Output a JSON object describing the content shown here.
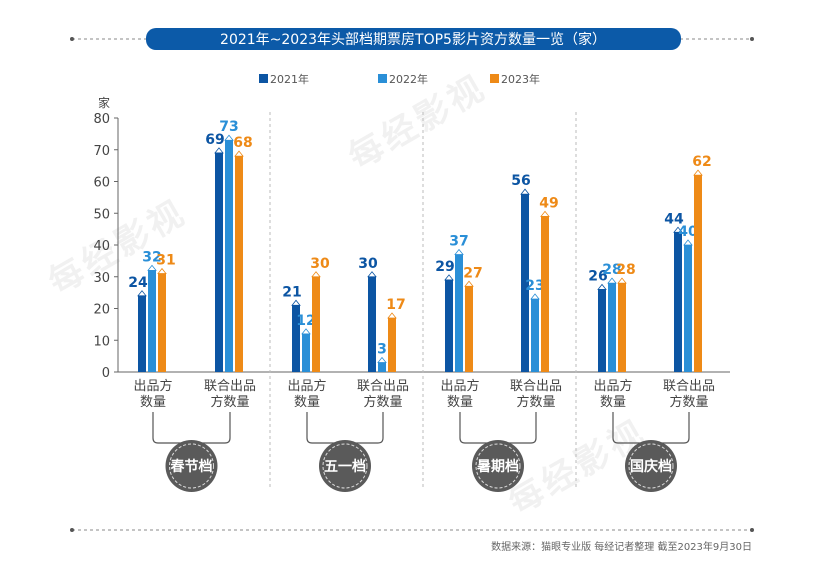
{
  "chart_data": {
    "type": "bar",
    "title": "2021年~2023年头部档期票房TOP5影片资方数量一览（家）",
    "ylabel": "家",
    "ylim": [
      0,
      80
    ],
    "yticks": [
      0,
      10,
      20,
      30,
      40,
      50,
      60,
      70,
      80
    ],
    "legend_position": "top-center",
    "legend": [
      "2021年",
      "2022年",
      "2023年"
    ],
    "colors": {
      "2021年": "#0c55a3",
      "2022年": "#2a8fd7",
      "2023年": "#ee8a17"
    },
    "groups": [
      {
        "name": "春节档",
        "categories": [
          {
            "label": [
              "出品方",
              "数量"
            ],
            "values": [
              24,
              32,
              31
            ]
          },
          {
            "label": [
              "联合出品",
              "方数量"
            ],
            "values": [
              69,
              73,
              68
            ]
          }
        ]
      },
      {
        "name": "五一档",
        "categories": [
          {
            "label": [
              "出品方",
              "数量"
            ],
            "values": [
              21,
              12,
              30
            ]
          },
          {
            "label": [
              "联合出品",
              "方数量"
            ],
            "values": [
              30,
              3,
              17
            ]
          }
        ]
      },
      {
        "name": "暑期档",
        "categories": [
          {
            "label": [
              "出品方",
              "数量"
            ],
            "values": [
              29,
              37,
              27
            ]
          },
          {
            "label": [
              "联合出品",
              "方数量"
            ],
            "values": [
              56,
              23,
              49
            ]
          }
        ]
      },
      {
        "name": "国庆档",
        "categories": [
          {
            "label": [
              "出品方",
              "数量"
            ],
            "values": [
              26,
              28,
              28
            ]
          },
          {
            "label": [
              "联合出品",
              "方数量"
            ],
            "values": [
              44,
              40,
              62
            ]
          }
        ]
      }
    ]
  },
  "footer": {
    "source": "数据来源：猫眼专业版  每经记者整理 截至2023年9月30日"
  },
  "watermark": "每经影视",
  "title_color": "#0c5aa8"
}
